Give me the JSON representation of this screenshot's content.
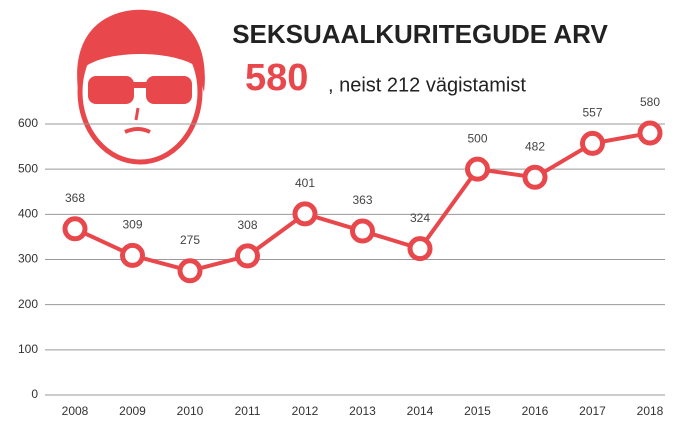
{
  "chart_data": {
    "type": "line",
    "title": "SEKSUAALKURITEGUDE ARV",
    "highlight": "580",
    "subtitle": ", neist 212 vägistamist",
    "categories": [
      "2008",
      "2009",
      "2010",
      "2011",
      "2012",
      "2013",
      "2014",
      "2015",
      "2016",
      "2017",
      "2018"
    ],
    "values": [
      368,
      309,
      275,
      308,
      401,
      363,
      324,
      500,
      482,
      557,
      580
    ],
    "color": "#e8484b",
    "ylim": [
      0,
      600
    ],
    "yticks": [
      0,
      100,
      200,
      300,
      400,
      500,
      600
    ],
    "grid": true
  }
}
